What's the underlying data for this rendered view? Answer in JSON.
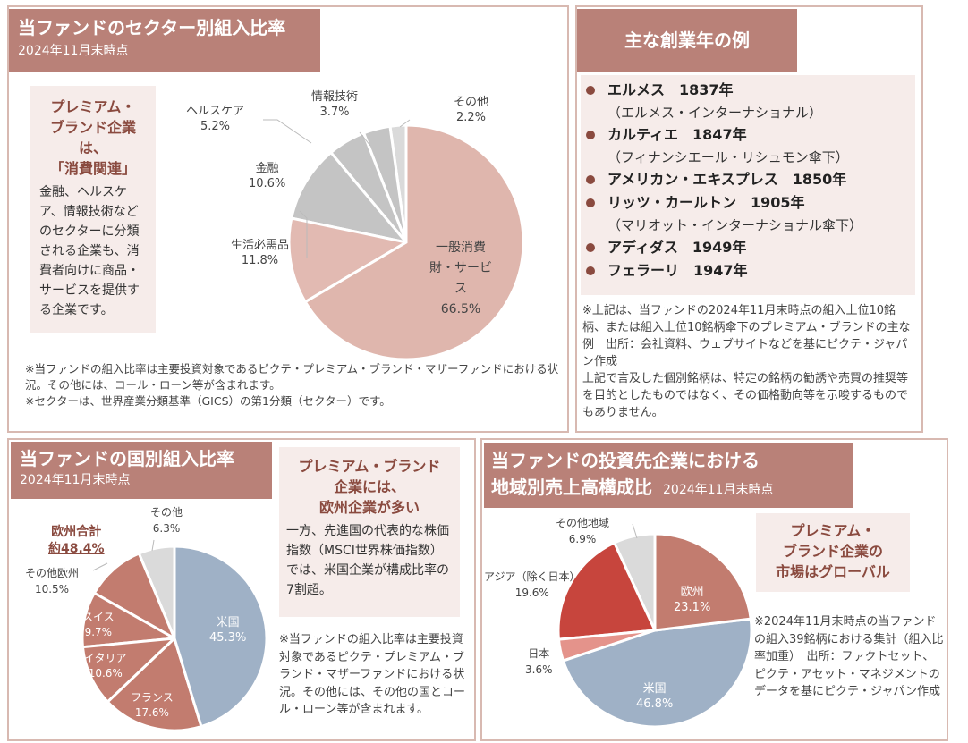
{
  "colors": {
    "header": "#b98178",
    "accent": "#8a4a3f",
    "callout_bg": "#f6ecea"
  },
  "sector": {
    "title": "当ファンドのセクター別組入比率",
    "date": "2024年11月末時点",
    "callout": {
      "heading": [
        "プレミアム・",
        "ブランド企業は、",
        "「消費関連」"
      ],
      "body": "金融、ヘルスケア、情報技術などのセクターに分類される企業も、消費者向けに商品・サービスを提供する企業です。"
    },
    "notes": [
      "※当ファンドの組入比率は主要投資対象であるピクテ・プレミアム・ブランド・マザーファンドにおける状況。その他には、コール・ローン等が含まれます。",
      "※セクターは、世界産業分類基準（GICS）の第1分類（セクター）です。"
    ]
  },
  "founding": {
    "title": "主な創業年の例",
    "items": [
      {
        "name": "エルメス　1837年",
        "sub": "（エルメス・インターナショナル）"
      },
      {
        "name": "カルティエ　1847年",
        "sub": "（フィナンシエール・リシュモン傘下）"
      },
      {
        "name": "アメリカン・エキスプレス　1850年",
        "sub": ""
      },
      {
        "name": "リッツ・カールトン　1905年",
        "sub": "（マリオット・インターナショナル傘下）"
      },
      {
        "name": "アディダス　1949年",
        "sub": ""
      },
      {
        "name": "フェラーリ　1947年",
        "sub": ""
      }
    ],
    "note": "※上記は、当ファンドの2024年11月末時点の組入上位10銘柄、または組入上位10銘柄傘下のプレミアム・ブランドの主な例　出所：会社資料、ウェブサイトなどを基にピクテ・ジャパン作成",
    "disclaimer": "上記で言及した個別銘柄は、特定の銘柄の勧誘や売買の推奨等を目的としたものではなく、その価格動向等を示唆するものでもありません。"
  },
  "country": {
    "title": "当ファンドの国別組入比率",
    "date": "2024年11月末時点",
    "europe_total_label": "欧州合計",
    "europe_total_value": "約48.4%",
    "callout": {
      "heading": [
        "プレミアム・ブランド",
        "企業には、",
        "欧州企業が多い"
      ],
      "body": "一方、先進国の代表的な株価指数（MSCI世界株価指数）では、米国企業が構成比率の7割超。"
    },
    "note": "※当ファンドの組入比率は主要投資対象であるピクテ・プレミアム・ブランド・マザーファンドにおける状況。その他には、その他の国とコール・ローン等が含まれます。"
  },
  "region": {
    "title_line1": "当ファンドの投資先企業における",
    "title_line2": "地域別売上高構成比",
    "date": "2024年11月末時点",
    "callout": {
      "heading": [
        "プレミアム・",
        "ブランド企業の",
        "市場はグローバル"
      ]
    },
    "note": "※2024年11月末時点の当ファンドの組入39銘柄における集計（組入比率加重）　出所：ファクトセット、ピクテ・アセット・マネジメントのデータを基にピクテ・ジャパン作成"
  },
  "chart_data": [
    {
      "type": "pie",
      "title": "当ファンドのセクター別組入比率",
      "start": "12 o'clock, clockwise",
      "unit": "%",
      "categories": [
        "一般消費財・サービス",
        "生活必需品",
        "金融",
        "ヘルスケア",
        "情報技術",
        "その他"
      ],
      "values": [
        66.5,
        11.8,
        10.6,
        5.2,
        3.7,
        2.2
      ],
      "labels": [
        "66.5%",
        "11.8%",
        "10.6%",
        "5.2%",
        "3.7%",
        "2.2%"
      ],
      "colors": [
        "#dfb6ad",
        "#e2bab2",
        "#c4c4c4",
        "#c4c4c4",
        "#c4c4c4",
        "#dadada"
      ]
    },
    {
      "type": "pie",
      "title": "当ファンドの国別組入比率",
      "start": "12 o'clock, clockwise",
      "unit": "%",
      "categories": [
        "米国",
        "フランス",
        "イタリア",
        "スイス",
        "その他欧州",
        "その他"
      ],
      "values": [
        45.3,
        17.6,
        10.6,
        9.7,
        10.5,
        6.3
      ],
      "labels": [
        "45.3%",
        "17.6%",
        "10.6%",
        "9.7%",
        "10.5%",
        "6.3%"
      ],
      "colors": [
        "#9fb1c6",
        "#c27c6f",
        "#c27c6f",
        "#c27c6f",
        "#c27c6f",
        "#dadada"
      ]
    },
    {
      "type": "pie",
      "title": "地域別売上高構成比",
      "start": "12 o'clock, clockwise",
      "unit": "%",
      "categories": [
        "欧州",
        "米国",
        "日本",
        "アジア（除く日本）",
        "その他地域"
      ],
      "values": [
        23.1,
        46.8,
        3.6,
        19.6,
        6.9
      ],
      "labels": [
        "23.1%",
        "46.8%",
        "3.6%",
        "19.6%",
        "6.9%"
      ],
      "colors": [
        "#c27c6f",
        "#9fb1c6",
        "#e4938b",
        "#c7453d",
        "#dadada"
      ]
    }
  ]
}
